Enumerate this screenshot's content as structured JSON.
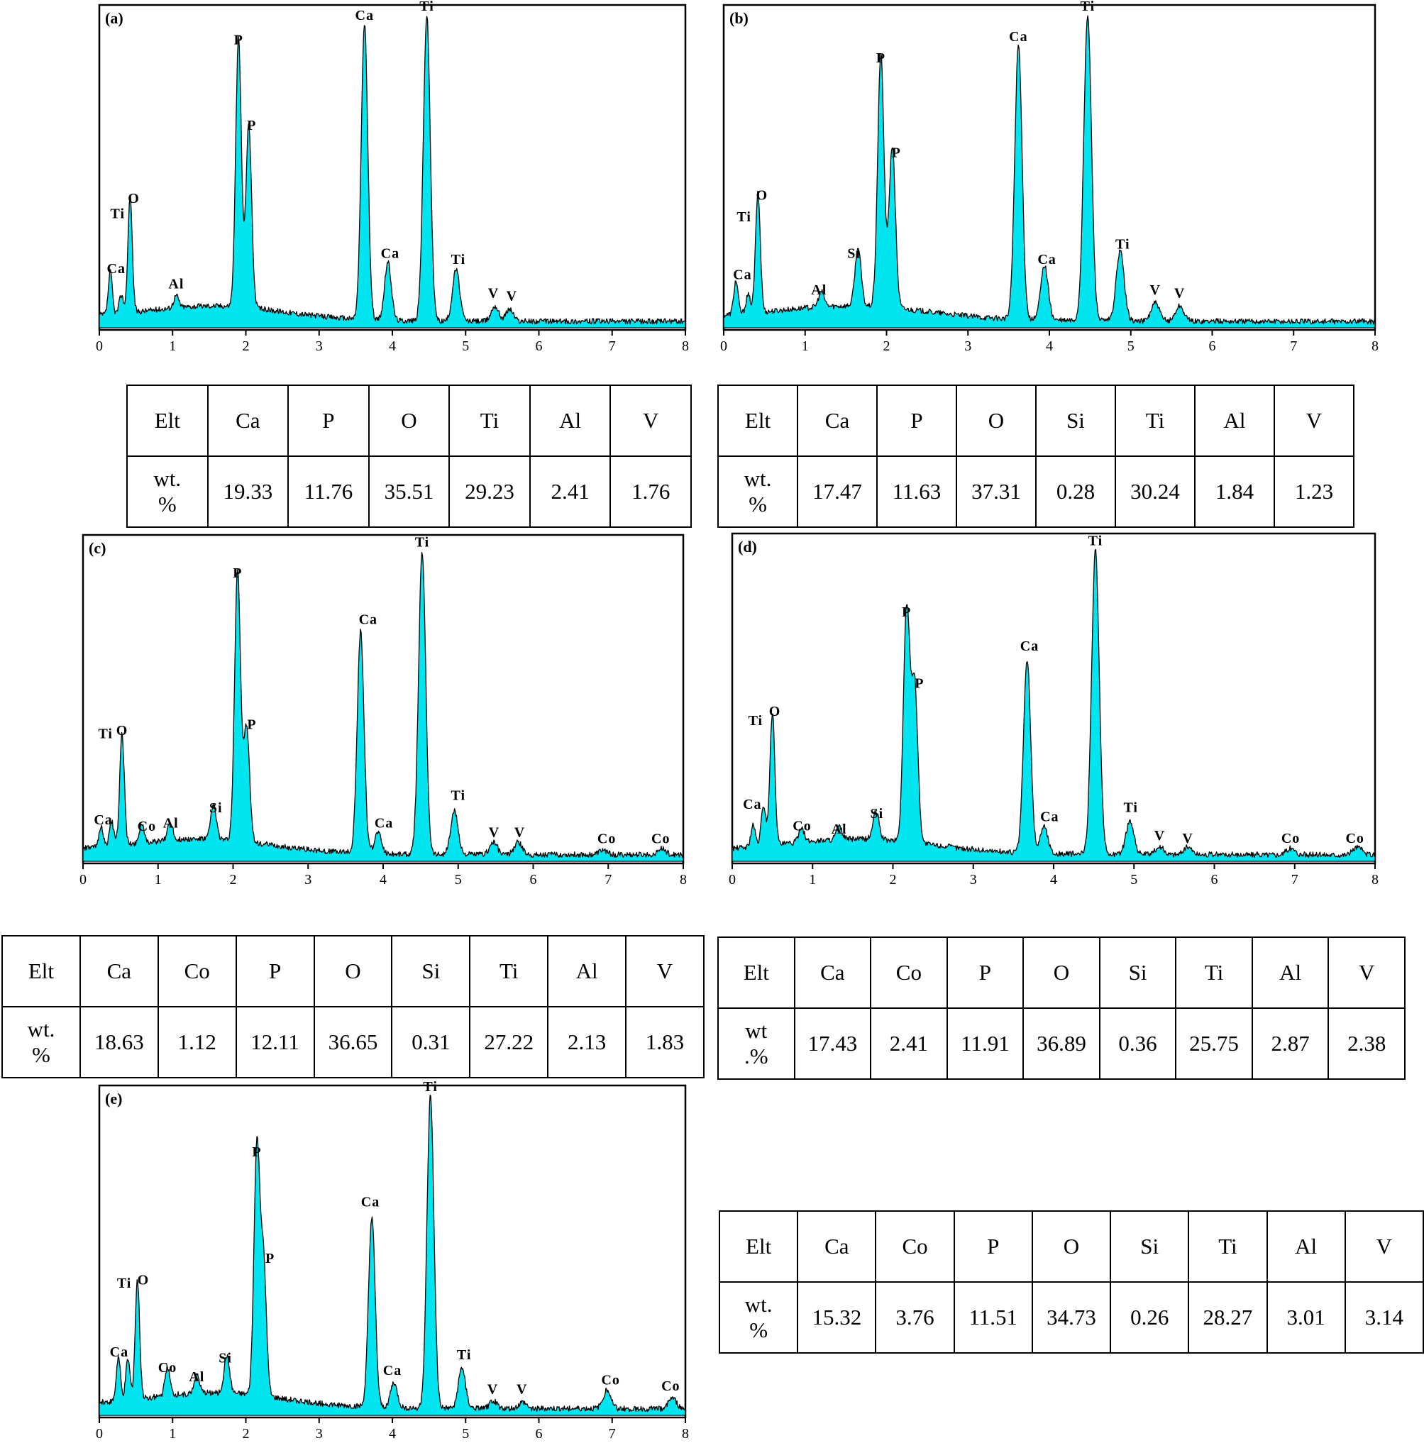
{
  "chart_data": [
    {
      "type": "area",
      "panel_label": "(a)",
      "x_ticks": [
        "0",
        "1",
        "2",
        "3",
        "4",
        "5",
        "6",
        "7",
        "8"
      ],
      "xlim": [
        0,
        8
      ],
      "peaks": [
        {
          "element": "Ca",
          "x": 0.15,
          "height": 0.14
        },
        {
          "element": "Ti",
          "x": 0.3,
          "height": 0.06
        },
        {
          "element": "O",
          "x": 0.42,
          "height": 0.38
        },
        {
          "element": "Al",
          "x": 1.05,
          "height": 0.04
        },
        {
          "element": "P",
          "x": 1.9,
          "height": 0.88
        },
        {
          "element": "P",
          "x": 2.04,
          "height": 0.6
        },
        {
          "element": "Ca",
          "x": 3.62,
          "height": 0.97
        },
        {
          "element": "Ca",
          "x": 3.94,
          "height": 0.19
        },
        {
          "element": "Ti",
          "x": 4.47,
          "height": 1.0
        },
        {
          "element": "Ti",
          "x": 4.87,
          "height": 0.17
        },
        {
          "element": "V",
          "x": 5.4,
          "height": 0.05
        },
        {
          "element": "V",
          "x": 5.6,
          "height": 0.04
        }
      ],
      "peak_labels": [
        {
          "text": "P",
          "x": 1.9,
          "h": 0.92
        },
        {
          "text": "P",
          "x": 2.08,
          "h": 0.64
        },
        {
          "text": "Ca",
          "x": 3.62,
          "h": 1.0
        },
        {
          "text": "Ti",
          "x": 4.47,
          "h": 1.03
        },
        {
          "text": "O",
          "x": 0.47,
          "h": 0.4
        },
        {
          "text": "Ti",
          "x": 0.25,
          "h": 0.35
        },
        {
          "text": "Ca",
          "x": 0.23,
          "h": 0.17
        },
        {
          "text": "Al",
          "x": 1.05,
          "h": 0.12
        },
        {
          "text": "Ca",
          "x": 3.97,
          "h": 0.22
        },
        {
          "text": "Ti",
          "x": 4.9,
          "h": 0.2
        },
        {
          "text": "V",
          "x": 5.38,
          "h": 0.09
        },
        {
          "text": "V",
          "x": 5.63,
          "h": 0.08
        }
      ],
      "table": {
        "headers": [
          "Elt",
          "Ca",
          "P",
          "O",
          "Ti",
          "Al",
          "V"
        ],
        "row_label": "wt.\n%",
        "values": [
          "19.33",
          "11.76",
          "35.51",
          "29.23",
          "2.41",
          "1.76"
        ]
      }
    },
    {
      "type": "area",
      "panel_label": "(b)",
      "x_ticks": [
        "0",
        "1",
        "2",
        "3",
        "4",
        "5",
        "6",
        "7",
        "8"
      ],
      "xlim": [
        0,
        8
      ],
      "peaks": [
        {
          "element": "Ca",
          "x": 0.15,
          "height": 0.11
        },
        {
          "element": "Ti",
          "x": 0.3,
          "height": 0.06
        },
        {
          "element": "O",
          "x": 0.42,
          "height": 0.39
        },
        {
          "element": "Al",
          "x": 1.2,
          "height": 0.05
        },
        {
          "element": "Si",
          "x": 1.65,
          "height": 0.19
        },
        {
          "element": "P",
          "x": 1.93,
          "height": 0.83
        },
        {
          "element": "P",
          "x": 2.07,
          "height": 0.53
        },
        {
          "element": "Ca",
          "x": 3.62,
          "height": 0.9
        },
        {
          "element": "Ca",
          "x": 3.94,
          "height": 0.18
        },
        {
          "element": "Ti",
          "x": 4.47,
          "height": 1.0
        },
        {
          "element": "Ti",
          "x": 4.87,
          "height": 0.23
        },
        {
          "element": "V",
          "x": 5.3,
          "height": 0.06
        },
        {
          "element": "V",
          "x": 5.6,
          "height": 0.05
        }
      ],
      "peak_labels": [
        {
          "text": "P",
          "x": 1.93,
          "h": 0.86
        },
        {
          "text": "P",
          "x": 2.12,
          "h": 0.55
        },
        {
          "text": "Ca",
          "x": 3.62,
          "h": 0.93
        },
        {
          "text": "Ti",
          "x": 4.47,
          "h": 1.03
        },
        {
          "text": "O",
          "x": 0.47,
          "h": 0.41
        },
        {
          "text": "Ti",
          "x": 0.25,
          "h": 0.34
        },
        {
          "text": "Ca",
          "x": 0.23,
          "h": 0.15
        },
        {
          "text": "Al",
          "x": 1.17,
          "h": 0.1
        },
        {
          "text": "Si",
          "x": 1.6,
          "h": 0.22
        },
        {
          "text": "Ca",
          "x": 3.97,
          "h": 0.2
        },
        {
          "text": "Ti",
          "x": 4.9,
          "h": 0.25
        },
        {
          "text": "V",
          "x": 5.3,
          "h": 0.1
        },
        {
          "text": "V",
          "x": 5.6,
          "h": 0.09
        }
      ],
      "table": {
        "headers": [
          "Elt",
          "Ca",
          "P",
          "O",
          "Si",
          "Ti",
          "Al",
          "V"
        ],
        "row_label": "wt.\n%",
        "values": [
          "17.47",
          "11.63",
          "37.31",
          "0.28",
          "30.24",
          "1.84",
          "1.23"
        ]
      }
    },
    {
      "type": "area",
      "panel_label": "(c)",
      "x_ticks": [
        "0",
        "1",
        "2",
        "3",
        "4",
        "5",
        "6",
        "7",
        "8"
      ],
      "xlim": [
        0,
        8
      ],
      "peaks": [
        {
          "element": "Ca",
          "x": 0.24,
          "height": 0.07
        },
        {
          "element": "Ca",
          "x": 0.38,
          "height": 0.08
        },
        {
          "element": "O",
          "x": 0.52,
          "height": 0.36
        },
        {
          "element": "Co",
          "x": 0.78,
          "height": 0.06
        },
        {
          "element": "Al",
          "x": 1.16,
          "height": 0.06
        },
        {
          "element": "Si",
          "x": 1.74,
          "height": 0.11
        },
        {
          "element": "P",
          "x": 2.06,
          "height": 0.88
        },
        {
          "element": "P",
          "x": 2.18,
          "height": 0.37
        },
        {
          "element": "Ca",
          "x": 3.7,
          "height": 0.72
        },
        {
          "element": "Ca",
          "x": 3.93,
          "height": 0.07
        },
        {
          "element": "Ti",
          "x": 4.52,
          "height": 0.98
        },
        {
          "element": "Ti",
          "x": 4.95,
          "height": 0.14
        },
        {
          "element": "V",
          "x": 5.47,
          "height": 0.04
        },
        {
          "element": "V",
          "x": 5.8,
          "height": 0.04
        },
        {
          "element": "Co",
          "x": 6.93,
          "height": 0.015
        },
        {
          "element": "Co",
          "x": 7.71,
          "height": 0.02
        }
      ],
      "peak_labels": [
        {
          "text": "P",
          "x": 2.06,
          "h": 0.91
        },
        {
          "text": "P",
          "x": 2.25,
          "h": 0.42
        },
        {
          "text": "Ca",
          "x": 3.8,
          "h": 0.76
        },
        {
          "text": "Ti",
          "x": 4.52,
          "h": 1.01
        },
        {
          "text": "O",
          "x": 0.52,
          "h": 0.4
        },
        {
          "text": "Ti",
          "x": 0.3,
          "h": 0.39
        },
        {
          "text": "Ca",
          "x": 0.27,
          "h": 0.11
        },
        {
          "text": "Co",
          "x": 0.85,
          "h": 0.09
        },
        {
          "text": "Al",
          "x": 1.17,
          "h": 0.1
        },
        {
          "text": "Si",
          "x": 1.77,
          "h": 0.15
        },
        {
          "text": "Ca",
          "x": 4.01,
          "h": 0.1
        },
        {
          "text": "Ti",
          "x": 5.0,
          "h": 0.19
        },
        {
          "text": "V",
          "x": 5.48,
          "h": 0.07
        },
        {
          "text": "V",
          "x": 5.82,
          "h": 0.07
        },
        {
          "text": "Co",
          "x": 6.98,
          "h": 0.05
        },
        {
          "text": "Co",
          "x": 7.7,
          "h": 0.05
        }
      ],
      "table": {
        "headers": [
          "Elt",
          "Ca",
          "Co",
          "P",
          "O",
          "Si",
          "Ti",
          "Al",
          "V"
        ],
        "row_label": "wt.\n%",
        "values": [
          "18.63",
          "1.12",
          "12.11",
          "36.65",
          "0.31",
          "27.22",
          "2.13",
          "1.83"
        ]
      }
    },
    {
      "type": "area",
      "panel_label": "(d)",
      "x_ticks": [
        "0",
        "1",
        "2",
        "3",
        "4",
        "5",
        "6",
        "7",
        "8"
      ],
      "xlim": [
        0,
        8
      ],
      "peaks": [
        {
          "element": "Ca",
          "x": 0.26,
          "height": 0.07
        },
        {
          "element": "Ca",
          "x": 0.39,
          "height": 0.13
        },
        {
          "element": "O",
          "x": 0.5,
          "height": 0.43
        },
        {
          "element": "Co",
          "x": 0.86,
          "height": 0.05
        },
        {
          "element": "Al",
          "x": 1.33,
          "height": 0.04
        },
        {
          "element": "Si",
          "x": 1.79,
          "height": 0.09
        },
        {
          "element": "P",
          "x": 2.17,
          "height": 0.75
        },
        {
          "element": "P",
          "x": 2.27,
          "height": 0.51
        },
        {
          "element": "Ca",
          "x": 3.67,
          "height": 0.62
        },
        {
          "element": "Ca",
          "x": 3.88,
          "height": 0.09
        },
        {
          "element": "Ti",
          "x": 4.52,
          "height": 0.98
        },
        {
          "element": "Ti",
          "x": 4.95,
          "height": 0.11
        },
        {
          "element": "V",
          "x": 5.32,
          "height": 0.025
        },
        {
          "element": "V",
          "x": 5.67,
          "height": 0.025
        },
        {
          "element": "Co",
          "x": 6.95,
          "height": 0.02
        },
        {
          "element": "Co",
          "x": 7.78,
          "height": 0.025
        }
      ],
      "peak_labels": [
        {
          "text": "P",
          "x": 2.17,
          "h": 0.78
        },
        {
          "text": "P",
          "x": 2.33,
          "h": 0.55
        },
        {
          "text": "Ca",
          "x": 3.7,
          "h": 0.67
        },
        {
          "text": "Ti",
          "x": 4.52,
          "h": 1.01
        },
        {
          "text": "O",
          "x": 0.53,
          "h": 0.46
        },
        {
          "text": "Ti",
          "x": 0.29,
          "h": 0.43
        },
        {
          "text": "Ca",
          "x": 0.25,
          "h": 0.16
        },
        {
          "text": "Co",
          "x": 0.87,
          "h": 0.09
        },
        {
          "text": "Al",
          "x": 1.33,
          "h": 0.08
        },
        {
          "text": "Si",
          "x": 1.8,
          "h": 0.13
        },
        {
          "text": "Ca",
          "x": 3.95,
          "h": 0.12
        },
        {
          "text": "Ti",
          "x": 4.96,
          "h": 0.15
        },
        {
          "text": "V",
          "x": 5.32,
          "h": 0.06
        },
        {
          "text": "V",
          "x": 5.67,
          "h": 0.05
        },
        {
          "text": "Co",
          "x": 6.95,
          "h": 0.05
        },
        {
          "text": "Co",
          "x": 7.75,
          "h": 0.05
        }
      ],
      "table": {
        "headers": [
          "Elt",
          "Ca",
          "Co",
          "P",
          "O",
          "Si",
          "Ti",
          "Al",
          "V"
        ],
        "row_label": "wt\n.%",
        "values": [
          "17.43",
          "2.41",
          "11.91",
          "36.89",
          "0.36",
          "25.75",
          "2.87",
          "2.38"
        ]
      }
    },
    {
      "type": "area",
      "panel_label": "(e)",
      "x_ticks": [
        "0",
        "1",
        "2",
        "3",
        "4",
        "5",
        "6",
        "7",
        "8"
      ],
      "xlim": [
        0,
        8
      ],
      "peaks": [
        {
          "element": "Ca",
          "x": 0.26,
          "height": 0.14
        },
        {
          "element": "Ca",
          "x": 0.39,
          "height": 0.13
        },
        {
          "element": "O",
          "x": 0.52,
          "height": 0.38
        },
        {
          "element": "Co",
          "x": 0.93,
          "height": 0.09
        },
        {
          "element": "Al",
          "x": 1.33,
          "height": 0.06
        },
        {
          "element": "Si",
          "x": 1.74,
          "height": 0.12
        },
        {
          "element": "P",
          "x": 2.15,
          "height": 0.79
        },
        {
          "element": "P",
          "x": 2.24,
          "height": 0.43
        },
        {
          "element": "Ca",
          "x": 3.72,
          "height": 0.61
        },
        {
          "element": "Ca",
          "x": 4.02,
          "height": 0.08
        },
        {
          "element": "Ti",
          "x": 4.52,
          "height": 1.0
        },
        {
          "element": "Ti",
          "x": 4.95,
          "height": 0.13
        },
        {
          "element": "V",
          "x": 5.38,
          "height": 0.025
        },
        {
          "element": "V",
          "x": 5.78,
          "height": 0.02
        },
        {
          "element": "Co",
          "x": 6.93,
          "height": 0.06
        },
        {
          "element": "Co",
          "x": 7.82,
          "height": 0.035
        }
      ],
      "peak_labels": [
        {
          "text": "P",
          "x": 2.15,
          "h": 0.82
        },
        {
          "text": "P",
          "x": 2.33,
          "h": 0.48
        },
        {
          "text": "Ca",
          "x": 3.7,
          "h": 0.66
        },
        {
          "text": "Ti",
          "x": 4.52,
          "h": 1.03
        },
        {
          "text": "O",
          "x": 0.6,
          "h": 0.41
        },
        {
          "text": "Ti",
          "x": 0.34,
          "h": 0.4
        },
        {
          "text": "Ca",
          "x": 0.27,
          "h": 0.18
        },
        {
          "text": "Co",
          "x": 0.93,
          "h": 0.13
        },
        {
          "text": "Al",
          "x": 1.33,
          "h": 0.1
        },
        {
          "text": "Si",
          "x": 1.72,
          "h": 0.16
        },
        {
          "text": "Ca",
          "x": 4.0,
          "h": 0.12
        },
        {
          "text": "Ti",
          "x": 4.98,
          "h": 0.17
        },
        {
          "text": "V",
          "x": 5.37,
          "h": 0.06
        },
        {
          "text": "V",
          "x": 5.77,
          "h": 0.06
        },
        {
          "text": "Co",
          "x": 6.98,
          "h": 0.09
        },
        {
          "text": "Co",
          "x": 7.8,
          "h": 0.07
        }
      ],
      "table": {
        "headers": [
          "Elt",
          "Ca",
          "Co",
          "P",
          "O",
          "Si",
          "Ti",
          "Al",
          "V"
        ],
        "row_label": "wt.\n%",
        "values": [
          "15.32",
          "3.76",
          "11.51",
          "34.73",
          "0.26",
          "28.27",
          "3.01",
          "3.14"
        ]
      }
    }
  ]
}
